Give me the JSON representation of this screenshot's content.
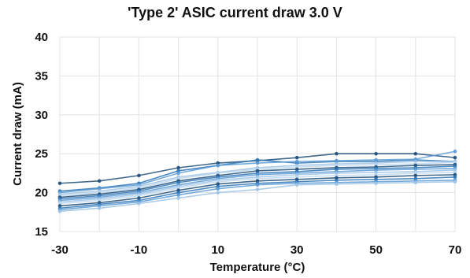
{
  "chart_data": {
    "type": "line",
    "title": "'Type 2' ASIC current draw 3.0 V",
    "xlabel": "Temperature (°C)",
    "ylabel": "Current draw (mA)",
    "x": [
      -30,
      -20,
      -10,
      0,
      10,
      20,
      30,
      40,
      50,
      60,
      70
    ],
    "xticks": [
      "-30",
      "-10",
      "10",
      "30",
      "50",
      "70"
    ],
    "yticks": [
      "15",
      "20",
      "25",
      "30",
      "35",
      "40"
    ],
    "xlim": [
      -30,
      70
    ],
    "ylim": [
      15,
      40
    ],
    "grid": true,
    "legend": "none",
    "colors": [
      "#1f4e79",
      "#2e75b6",
      "#5b9bd5",
      "#9dc3e6",
      "#bdd7ee"
    ],
    "series": [
      {
        "values": [
          21.2,
          21.5,
          22.2,
          23.2,
          23.8,
          24.1,
          24.5,
          25.0,
          25.0,
          25.0,
          24.5
        ]
      },
      {
        "values": [
          20.2,
          20.6,
          21.2,
          22.8,
          23.5,
          24.2,
          23.8,
          24.0,
          24.0,
          24.2,
          24.0
        ]
      },
      {
        "values": [
          20.0,
          20.5,
          21.0,
          22.5,
          23.5,
          23.8,
          24.0,
          24.1,
          24.2,
          24.3,
          25.3
        ]
      },
      {
        "values": [
          19.8,
          20.2,
          20.8,
          22.0,
          22.6,
          23.2,
          23.5,
          23.7,
          23.8,
          24.0,
          24.0
        ]
      },
      {
        "values": [
          19.6,
          20.0,
          20.6,
          21.8,
          22.5,
          23.0,
          23.3,
          23.5,
          23.6,
          23.7,
          23.9
        ]
      },
      {
        "values": [
          19.4,
          19.8,
          20.4,
          21.5,
          22.2,
          22.8,
          23.0,
          23.2,
          23.3,
          23.5,
          23.6
        ]
      },
      {
        "values": [
          19.2,
          19.6,
          20.2,
          21.3,
          22.0,
          22.5,
          22.7,
          23.0,
          23.1,
          23.2,
          23.4
        ]
      },
      {
        "values": [
          19.0,
          19.4,
          20.0,
          21.0,
          21.8,
          22.3,
          22.5,
          22.7,
          22.9,
          23.0,
          23.1
        ]
      },
      {
        "values": [
          18.8,
          19.2,
          19.8,
          20.8,
          21.6,
          22.0,
          22.3,
          22.5,
          22.6,
          22.7,
          22.9
        ]
      },
      {
        "values": [
          18.6,
          19.0,
          19.6,
          20.6,
          21.4,
          21.8,
          22.0,
          22.2,
          22.3,
          22.5,
          22.6
        ]
      },
      {
        "values": [
          18.3,
          18.7,
          19.3,
          20.3,
          21.1,
          21.5,
          21.7,
          21.9,
          22.0,
          22.2,
          22.3
        ]
      },
      {
        "values": [
          18.0,
          18.5,
          19.0,
          20.0,
          20.8,
          21.2,
          21.4,
          21.6,
          21.7,
          21.8,
          22.0
        ]
      },
      {
        "values": [
          17.8,
          18.3,
          18.8,
          19.7,
          20.5,
          21.0,
          21.2,
          21.3,
          21.4,
          21.5,
          21.6
        ]
      },
      {
        "values": [
          17.6,
          18.0,
          18.6,
          19.3,
          20.0,
          20.4,
          21.0,
          21.1,
          21.2,
          21.3,
          21.4
        ]
      }
    ]
  }
}
